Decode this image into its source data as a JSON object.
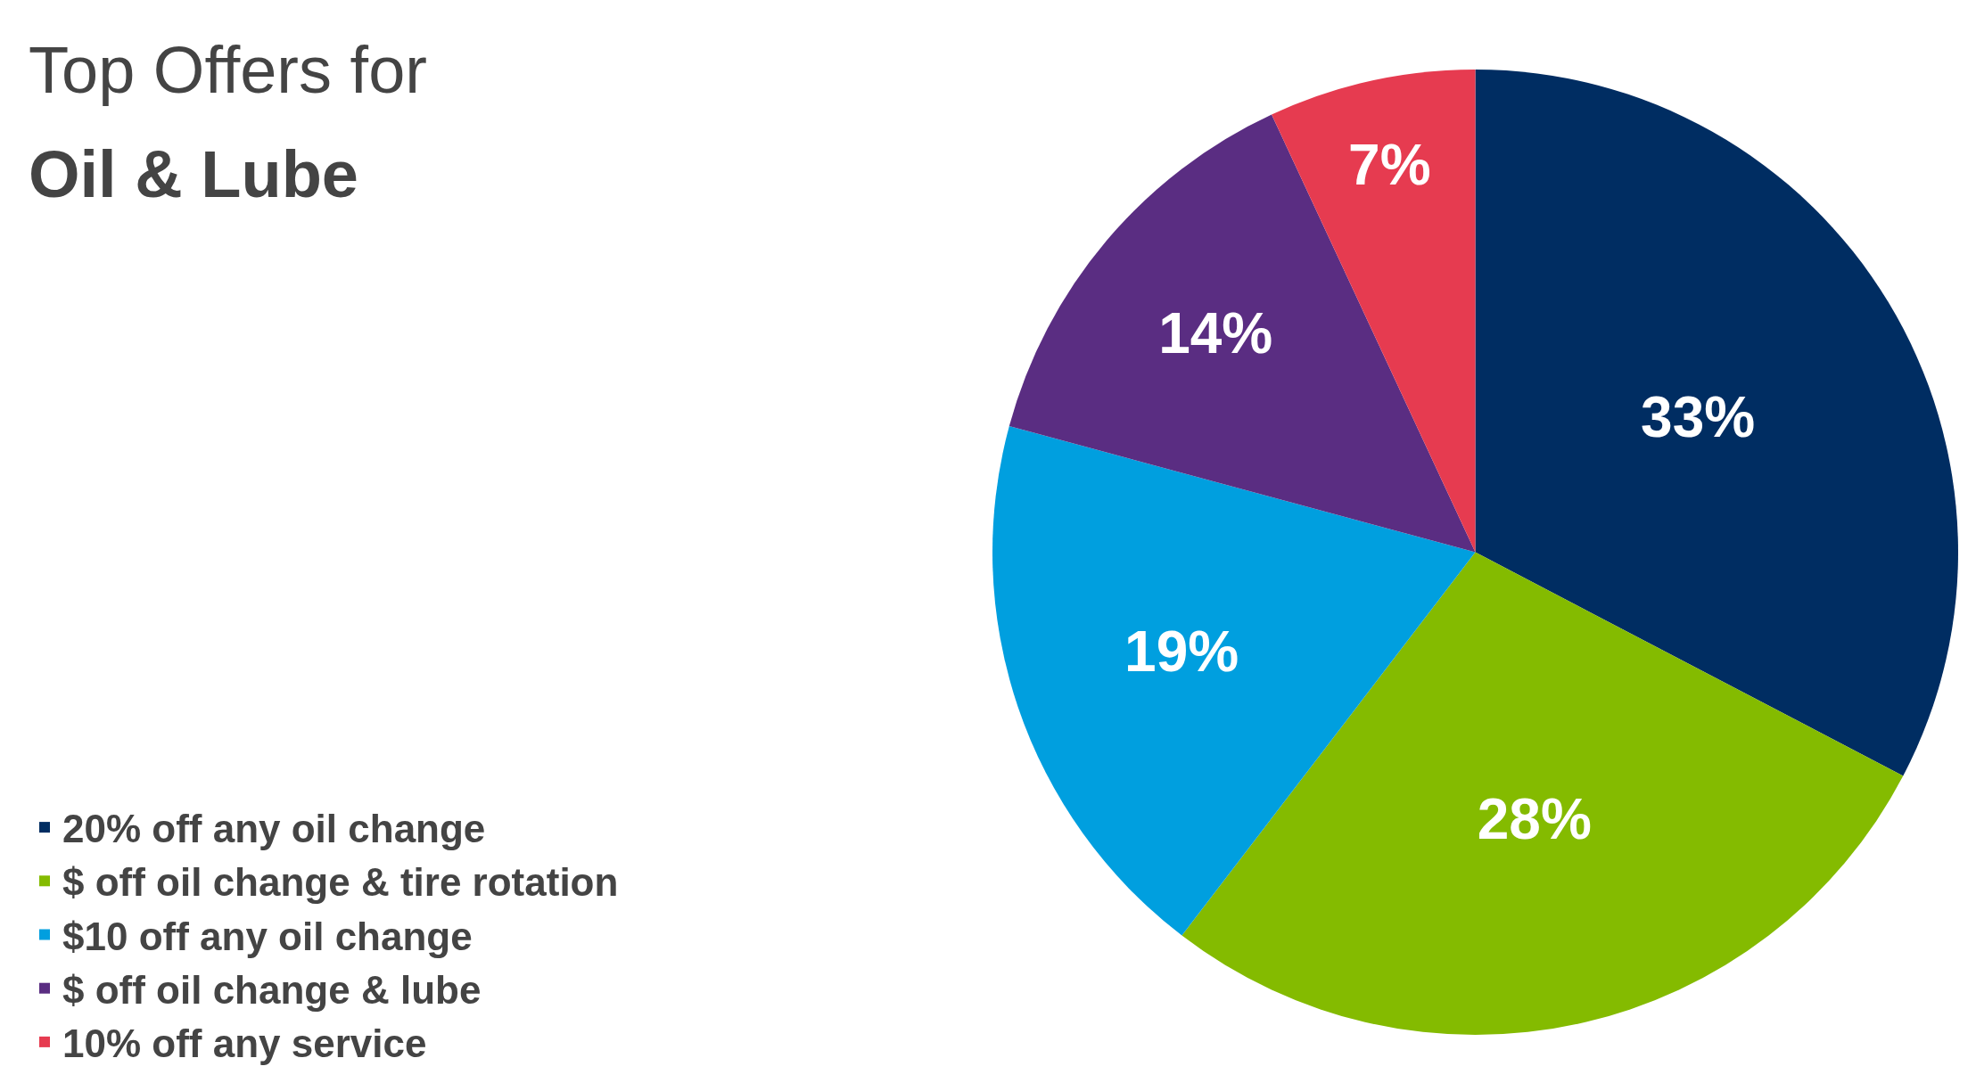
{
  "chart_data": {
    "type": "pie",
    "title": "Top Offers for",
    "subtitle": "Oil & Lube",
    "categories": [
      "20% off any oil change",
      "$ off oil change & tire rotation",
      "$10 off any oil change",
      "$ off oil change & lube",
      "10% off any service"
    ],
    "values": [
      33,
      28,
      19,
      14,
      7
    ],
    "colors": [
      "#002d62",
      "#84bb00",
      "#009fdf",
      "#5a2d82",
      "#e63b50"
    ],
    "value_labels": [
      "33%",
      "28%",
      "19%",
      "14%",
      "7%"
    ],
    "legend": "bottom left"
  }
}
